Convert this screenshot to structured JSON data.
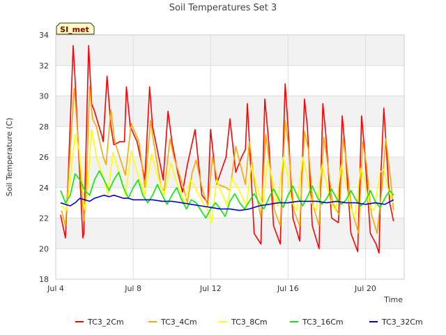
{
  "chart_data": {
    "type": "line",
    "title": "Soil Temperatures Set 3",
    "xlabel": "Time",
    "ylabel": "Soil Temperature (C)",
    "site_label": "SI_met",
    "x_unit": "day of July",
    "xlim": [
      4,
      22
    ],
    "ylim": [
      18,
      34
    ],
    "xticks": [
      {
        "v": 4,
        "label": "Jul 4"
      },
      {
        "v": 8,
        "label": "Jul 8"
      },
      {
        "v": 12,
        "label": "Jul 12"
      },
      {
        "v": 16,
        "label": "Jul 16"
      },
      {
        "v": 20,
        "label": "Jul 20"
      }
    ],
    "yticks": [
      {
        "v": 18,
        "label": "18"
      },
      {
        "v": 20,
        "label": "20"
      },
      {
        "v": 22,
        "label": "22"
      },
      {
        "v": 24,
        "label": "24"
      },
      {
        "v": 26,
        "label": "26"
      },
      {
        "v": 28,
        "label": "28"
      },
      {
        "v": 30,
        "label": "30"
      },
      {
        "v": 32,
        "label": "32"
      },
      {
        "v": 34,
        "label": "34"
      }
    ],
    "grid": true,
    "legend_position": "bottom",
    "series": [
      {
        "name": "TC3_2Cm",
        "color": "#ff0000",
        "x": [
          4.25,
          4.5,
          4.65,
          4.9,
          5.0,
          5.4,
          5.45,
          5.7,
          5.85,
          6.0,
          6.4,
          6.45,
          6.65,
          6.85,
          7.0,
          7.3,
          7.55,
          7.65,
          7.85,
          8.2,
          8.45,
          8.6,
          8.85,
          9.0,
          9.4,
          9.55,
          9.8,
          10.0,
          10.3,
          10.55,
          10.8,
          11.2,
          11.3,
          11.55,
          11.85,
          12.0,
          12.3,
          12.8,
          13.0,
          13.3,
          13.6,
          13.8,
          13.9,
          14.25,
          14.6,
          14.8,
          15.0,
          15.25,
          15.6,
          15.85,
          16.0,
          16.25,
          16.6,
          16.85,
          17.0,
          17.25,
          17.6,
          17.8,
          17.95,
          18.25,
          18.6,
          18.8,
          18.95,
          19.25,
          19.6,
          19.8,
          19.95,
          20.25,
          20.55,
          20.7,
          20.8,
          20.95,
          21.25,
          21.45
        ],
        "y": [
          22.2,
          20.7,
          25.0,
          33.3,
          31.0,
          20.7,
          21.0,
          33.3,
          29.5,
          29.0,
          27.3,
          27.0,
          31.3,
          28.0,
          26.8,
          27.0,
          27.0,
          30.6,
          28.0,
          27.0,
          25.5,
          24.5,
          30.6,
          28.0,
          25.5,
          24.5,
          29.0,
          27.0,
          25.0,
          23.7,
          25.5,
          27.8,
          26.5,
          23.5,
          23.0,
          27.8,
          24.2,
          26.0,
          28.5,
          25.0,
          26.0,
          26.5,
          29.5,
          21.0,
          20.3,
          29.8,
          27.0,
          21.5,
          20.3,
          30.8,
          28.0,
          22.0,
          20.5,
          29.8,
          28.0,
          21.5,
          20.0,
          29.5,
          27.5,
          22.0,
          21.7,
          28.7,
          26.5,
          21.0,
          19.8,
          28.7,
          26.5,
          21.0,
          20.3,
          19.7,
          25.0,
          29.2,
          23.0,
          21.8
        ]
      },
      {
        "name": "TC3_4Cm",
        "color": "#ffa500",
        "x": [
          4.3,
          4.5,
          4.65,
          4.95,
          5.05,
          5.45,
          5.55,
          5.75,
          5.9,
          6.1,
          6.45,
          6.6,
          6.85,
          7.05,
          7.6,
          7.9,
          8.3,
          8.6,
          8.9,
          9.05,
          9.45,
          9.6,
          9.9,
          10.1,
          10.6,
          10.8,
          11.05,
          11.25,
          11.55,
          11.85,
          12.1,
          12.4,
          12.8,
          13.0,
          13.3,
          13.8,
          14.0,
          14.3,
          14.6,
          14.85,
          15.0,
          15.3,
          15.6,
          15.85,
          16.0,
          16.3,
          16.6,
          16.85,
          17.05,
          17.3,
          17.6,
          17.85,
          18.0,
          18.3,
          18.65,
          18.85,
          19.0,
          19.3,
          19.65,
          19.85,
          20.05,
          20.3,
          20.6,
          20.85,
          21.05,
          21.3,
          21.45
        ],
        "y": [
          22.5,
          21.5,
          24.5,
          30.5,
          29.0,
          21.8,
          23.0,
          30.6,
          28.5,
          28.0,
          26.0,
          25.5,
          29.1,
          27.0,
          24.8,
          28.2,
          27.0,
          24.0,
          28.4,
          27.0,
          24.0,
          23.8,
          27.2,
          26.0,
          24.0,
          23.0,
          25.0,
          25.8,
          24.0,
          22.8,
          26.0,
          24.2,
          24.0,
          23.8,
          26.7,
          24.2,
          27.0,
          24.0,
          22.0,
          27.5,
          26.0,
          22.5,
          21.5,
          28.4,
          27.0,
          22.5,
          21.5,
          27.7,
          26.5,
          22.8,
          21.5,
          27.3,
          26.0,
          23.0,
          22.2,
          27.2,
          25.8,
          22.5,
          21.0,
          27.0,
          25.5,
          22.3,
          21.0,
          24.0,
          27.2,
          24.5,
          22.5
        ]
      },
      {
        "name": "TC3_8Cm",
        "color": "#ffff00",
        "x": [
          4.3,
          4.55,
          4.7,
          5.0,
          5.2,
          5.5,
          5.65,
          5.85,
          6.1,
          6.5,
          6.7,
          6.95,
          7.15,
          7.6,
          7.9,
          8.2,
          8.6,
          8.95,
          9.2,
          9.6,
          9.95,
          10.2,
          10.65,
          10.95,
          11.2,
          11.6,
          11.85,
          12.05,
          12.3,
          12.85,
          13.1,
          13.4,
          13.85,
          14.1,
          14.4,
          14.7,
          14.95,
          15.2,
          15.45,
          15.75,
          15.95,
          16.2,
          16.45,
          16.75,
          16.95,
          17.2,
          17.45,
          17.75,
          17.95,
          18.2,
          18.45,
          18.75,
          18.95,
          19.2,
          19.45,
          19.75,
          19.95,
          20.2,
          20.45,
          20.75,
          20.95,
          21.15,
          21.4
        ],
        "y": [
          22.8,
          22.5,
          24.0,
          27.5,
          26.5,
          22.5,
          24.0,
          27.8,
          26.0,
          24.5,
          23.5,
          26.3,
          25.5,
          23.5,
          26.4,
          25.0,
          23.5,
          26.2,
          25.0,
          23.5,
          25.6,
          24.5,
          23.0,
          24.5,
          24.0,
          23.0,
          22.5,
          21.7,
          24.5,
          22.8,
          24.6,
          24.0,
          22.8,
          25.5,
          24.0,
          22.8,
          25.8,
          24.5,
          22.8,
          26.0,
          25.0,
          23.0,
          22.5,
          26.0,
          25.0,
          23.0,
          22.5,
          25.5,
          24.5,
          23.0,
          22.5,
          25.5,
          24.5,
          22.8,
          22.0,
          25.3,
          24.5,
          22.8,
          22.5,
          25.0,
          25.2,
          24.0,
          23.0
        ]
      },
      {
        "name": "TC3_16Cm",
        "color": "#00ee00",
        "x": [
          4.25,
          4.5,
          4.75,
          5.0,
          5.25,
          5.5,
          5.75,
          6.0,
          6.25,
          6.5,
          6.75,
          7.0,
          7.25,
          7.5,
          7.75,
          8.0,
          8.25,
          8.5,
          8.75,
          9.0,
          9.25,
          9.5,
          9.75,
          10.0,
          10.25,
          10.5,
          10.75,
          11.0,
          11.25,
          11.5,
          11.75,
          12.0,
          12.25,
          12.5,
          12.75,
          13.0,
          13.25,
          13.5,
          13.75,
          14.0,
          14.25,
          14.5,
          14.75,
          15.0,
          15.25,
          15.5,
          15.75,
          16.0,
          16.25,
          16.5,
          16.75,
          17.0,
          17.25,
          17.5,
          17.75,
          18.0,
          18.25,
          18.5,
          18.75,
          19.0,
          19.25,
          19.5,
          19.75,
          20.0,
          20.25,
          20.5,
          20.75,
          21.0,
          21.25,
          21.45
        ],
        "y": [
          23.8,
          23.0,
          23.5,
          24.9,
          24.5,
          23.8,
          23.5,
          24.5,
          25.1,
          24.5,
          23.8,
          24.5,
          25.0,
          24.0,
          23.3,
          24.0,
          24.5,
          23.5,
          23.0,
          23.5,
          24.2,
          23.5,
          22.9,
          23.5,
          24.0,
          23.2,
          22.6,
          23.2,
          23.0,
          22.5,
          22.0,
          22.6,
          23.0,
          22.6,
          22.1,
          23.1,
          23.6,
          23.0,
          22.6,
          23.1,
          23.6,
          23.0,
          22.6,
          23.3,
          23.9,
          23.3,
          22.7,
          23.5,
          24.1,
          23.4,
          22.8,
          23.4,
          24.1,
          23.4,
          22.9,
          23.3,
          23.9,
          23.3,
          22.9,
          23.2,
          23.8,
          23.2,
          22.8,
          23.1,
          23.8,
          23.1,
          22.7,
          23.3,
          23.8,
          23.5
        ]
      },
      {
        "name": "TC3_32Cm",
        "color": "#0000cc",
        "x": [
          4.25,
          4.5,
          4.75,
          5.0,
          5.25,
          5.5,
          5.75,
          6.0,
          6.25,
          6.5,
          6.75,
          7.0,
          7.25,
          7.5,
          7.75,
          8.0,
          8.5,
          9.0,
          9.5,
          10.0,
          10.5,
          11.0,
          11.5,
          12.0,
          12.5,
          13.0,
          13.5,
          14.0,
          14.5,
          15.0,
          15.5,
          16.0,
          16.5,
          17.0,
          17.5,
          18.0,
          18.5,
          19.0,
          19.5,
          20.0,
          20.5,
          21.0,
          21.45
        ],
        "y": [
          23.0,
          22.9,
          22.8,
          23.0,
          23.3,
          23.2,
          23.1,
          23.3,
          23.4,
          23.5,
          23.4,
          23.5,
          23.4,
          23.3,
          23.3,
          23.2,
          23.2,
          23.2,
          23.1,
          23.1,
          23.0,
          22.9,
          22.8,
          22.7,
          22.6,
          22.6,
          22.5,
          22.6,
          22.8,
          22.9,
          23.0,
          23.0,
          23.1,
          23.1,
          23.1,
          23.0,
          23.1,
          23.0,
          23.0,
          22.9,
          23.0,
          22.9,
          23.2
        ]
      }
    ]
  }
}
